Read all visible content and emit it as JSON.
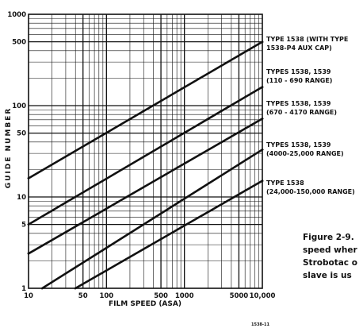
{
  "chart_data": {
    "type": "line",
    "xlabel": "FILM SPEED (ASA)",
    "ylabel": "GUIDE NUMBER",
    "x_scale": "log",
    "y_scale": "log",
    "xlim": [
      10,
      10000
    ],
    "ylim": [
      1,
      1000
    ],
    "x_ticks": [
      "10",
      "50",
      "100",
      "500",
      "1000",
      "5000",
      "10,000"
    ],
    "x_tick_values": [
      10,
      50,
      100,
      500,
      1000,
      5000,
      10000
    ],
    "y_ticks": [
      "1",
      "5",
      "10",
      "50",
      "100",
      "500",
      "1000"
    ],
    "y_tick_values": [
      1,
      5,
      10,
      50,
      100,
      500,
      1000
    ],
    "grid": true,
    "series": [
      {
        "label_lines": [
          "TYPE 1538 (WITH TYPE",
          "1538-P4 AUX CAP)"
        ],
        "x": [
          10,
          10000
        ],
        "y": [
          16,
          500
        ]
      },
      {
        "label_lines": [
          "TYPES 1538, 1539",
          "(110 - 690 RANGE)"
        ],
        "x": [
          10,
          10000
        ],
        "y": [
          5,
          160
        ]
      },
      {
        "label_lines": [
          "TYPES 1538, 1539",
          "(670 - 4170 RANGE)"
        ],
        "x": [
          10,
          10000
        ],
        "y": [
          2.4,
          72
        ]
      },
      {
        "label_lines": [
          "TYPES 1538, 1539",
          "(4000-25,000 RANGE)"
        ],
        "x": [
          15,
          10000
        ],
        "y": [
          1,
          33
        ]
      },
      {
        "label_lines": [
          "TYPE 1538",
          "(24,000-150,000 RANGE)"
        ],
        "x": [
          40,
          10000
        ],
        "y": [
          1,
          15
        ]
      }
    ]
  },
  "caption_lines": [
    "Figure 2-9.",
    "speed wher",
    "Strobotac o",
    "slave is us"
  ],
  "ref_code": "1538-11"
}
